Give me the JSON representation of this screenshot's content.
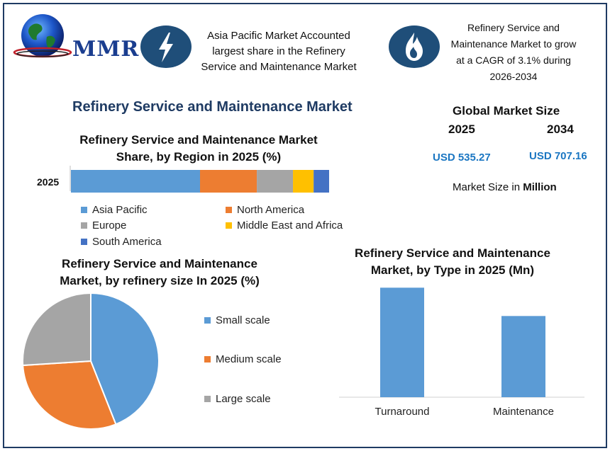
{
  "header": {
    "logo_text": "MMR",
    "highlight_1": [
      "Asia Pacific Market Accounted",
      "largest share in the Refinery",
      "Service and Maintenance Market"
    ],
    "highlight_2": [
      "Refinery Service and",
      "Maintenance Market to grow",
      "at a CAGR of 3.1% during",
      "2026-2034"
    ],
    "icons": [
      "lightning-bolt-icon",
      "flame-icon"
    ]
  },
  "main_title": "Refinery Service and Maintenance Market",
  "market_size": {
    "title": "Global Market Size",
    "year_1": "2025",
    "year_2": "2034",
    "value_1": "USD 535.27",
    "value_2": "USD 707.16",
    "unit_prefix": "Market Size in ",
    "unit_bold": "Million"
  },
  "chart_data": [
    {
      "type": "bar",
      "orientation": "horizontal-stacked",
      "title": "Refinery Service and Maintenance Market Share, by Region in 2025 (%)",
      "categories": [
        "2025"
      ],
      "series": [
        {
          "name": "Asia Pacific",
          "values": [
            50
          ],
          "color": "#5b9bd5"
        },
        {
          "name": "North America",
          "values": [
            22
          ],
          "color": "#ed7d31"
        },
        {
          "name": "Europe",
          "values": [
            14
          ],
          "color": "#a5a5a5"
        },
        {
          "name": "Middle East and Africa",
          "values": [
            8
          ],
          "color": "#ffc000"
        },
        {
          "name": "South America",
          "values": [
            6
          ],
          "color": "#4472c4"
        }
      ],
      "legend": "bottom"
    },
    {
      "type": "pie",
      "title": "Refinery Service and Maintenance Market, by  refinery size In 2025 (%)",
      "labels": [
        "Small scale",
        "Medium scale",
        "Large scale"
      ],
      "values": [
        44,
        30,
        26
      ],
      "colors": [
        "#5b9bd5",
        "#ed7d31",
        "#a5a5a5"
      ],
      "legend": "right"
    },
    {
      "type": "bar",
      "title": "Refinery Service and Maintenance Market, by Type in 2025 (Mn)",
      "categories": [
        "Turnaround",
        "Maintenance"
      ],
      "values": [
        290,
        215
      ],
      "ylim": [
        0,
        300
      ],
      "color": "#5b9bd5",
      "grid": false
    }
  ]
}
